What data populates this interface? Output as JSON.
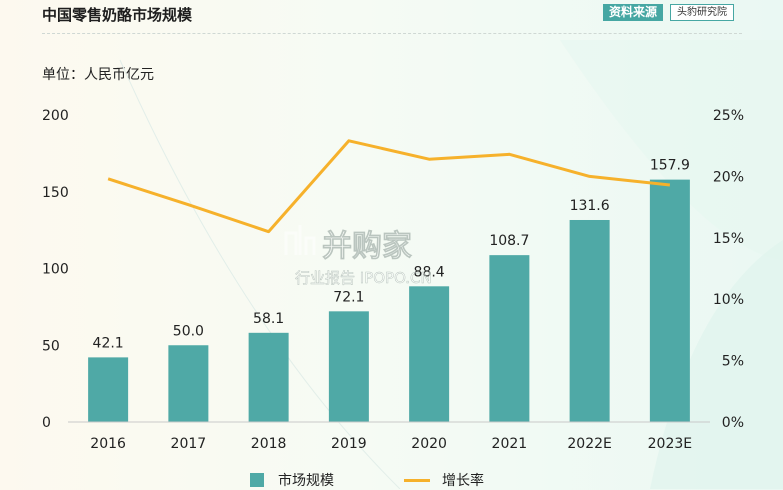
{
  "header": {
    "title": "中国零售奶酪市场规模",
    "source_tag": "资料来源",
    "source_name": "头豹研究院"
  },
  "unit_label": "单位：人民币亿元",
  "watermark": {
    "brand": "并购家",
    "sub": "行业报告 IPOPO.CN"
  },
  "colors": {
    "bar": "#4fa9a6",
    "line": "#f6b12b",
    "source_tag_bg": "#46a7a3"
  },
  "chart_data": {
    "type": "bar",
    "categories": [
      "2016",
      "2017",
      "2018",
      "2019",
      "2020",
      "2021",
      "2022E",
      "2023E"
    ],
    "series": [
      {
        "name": "市场规模",
        "type": "bar",
        "axis": "left",
        "values": [
          42.1,
          50.0,
          58.1,
          72.1,
          88.4,
          108.7,
          131.6,
          157.9
        ],
        "labels": [
          "42.1",
          "50.0",
          "58.1",
          "72.1",
          "88.4",
          "108.7",
          "131.6",
          "157.9"
        ]
      },
      {
        "name": "增长率",
        "type": "line",
        "axis": "right",
        "values": [
          19.8,
          17.7,
          15.5,
          22.9,
          21.4,
          21.8,
          20.0,
          19.3
        ]
      }
    ],
    "y_left": {
      "ylim": [
        0,
        200
      ],
      "ticks": [
        "0",
        "50",
        "100",
        "150",
        "200"
      ]
    },
    "y_right": {
      "ylim": [
        0,
        25
      ],
      "ticks": [
        "0%",
        "5%",
        "10%",
        "15%",
        "20%",
        "25%"
      ]
    },
    "grid": false,
    "legend_position": "bottom"
  }
}
